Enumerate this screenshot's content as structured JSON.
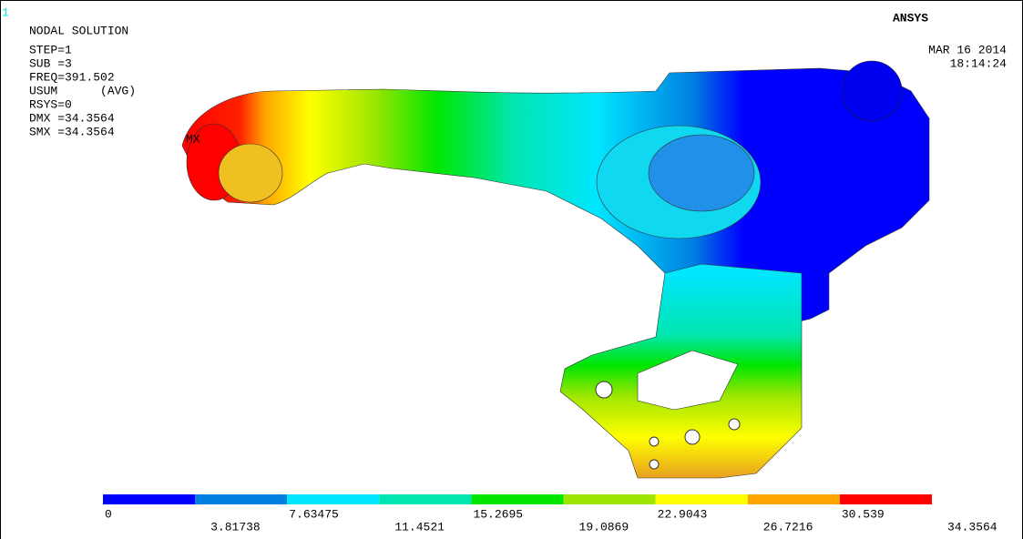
{
  "window_number": "1",
  "header": {
    "lines": [
      "NODAL SOLUTION",
      "STEP=1",
      "SUB =3",
      "FREQ=391.502",
      "USUM      (AVG)",
      "RSYS=0",
      "DMX =34.3564",
      "SMX =34.3564"
    ]
  },
  "logo": "ANSYS",
  "date": "MAR 16 2014",
  "time": "18:14:24",
  "max_marker": "MX",
  "legend": {
    "labels": [
      "0",
      "3.81738",
      "7.63475",
      "11.4521",
      "15.2695",
      "19.0869",
      "22.9043",
      "26.7216",
      "30.539",
      "34.3564"
    ],
    "colors": [
      "#0000ff",
      "#0080e0",
      "#00e6ff",
      "#00e6b0",
      "#00e600",
      "#9ee600",
      "#ffff00",
      "#ffa500",
      "#ff0000"
    ]
  }
}
